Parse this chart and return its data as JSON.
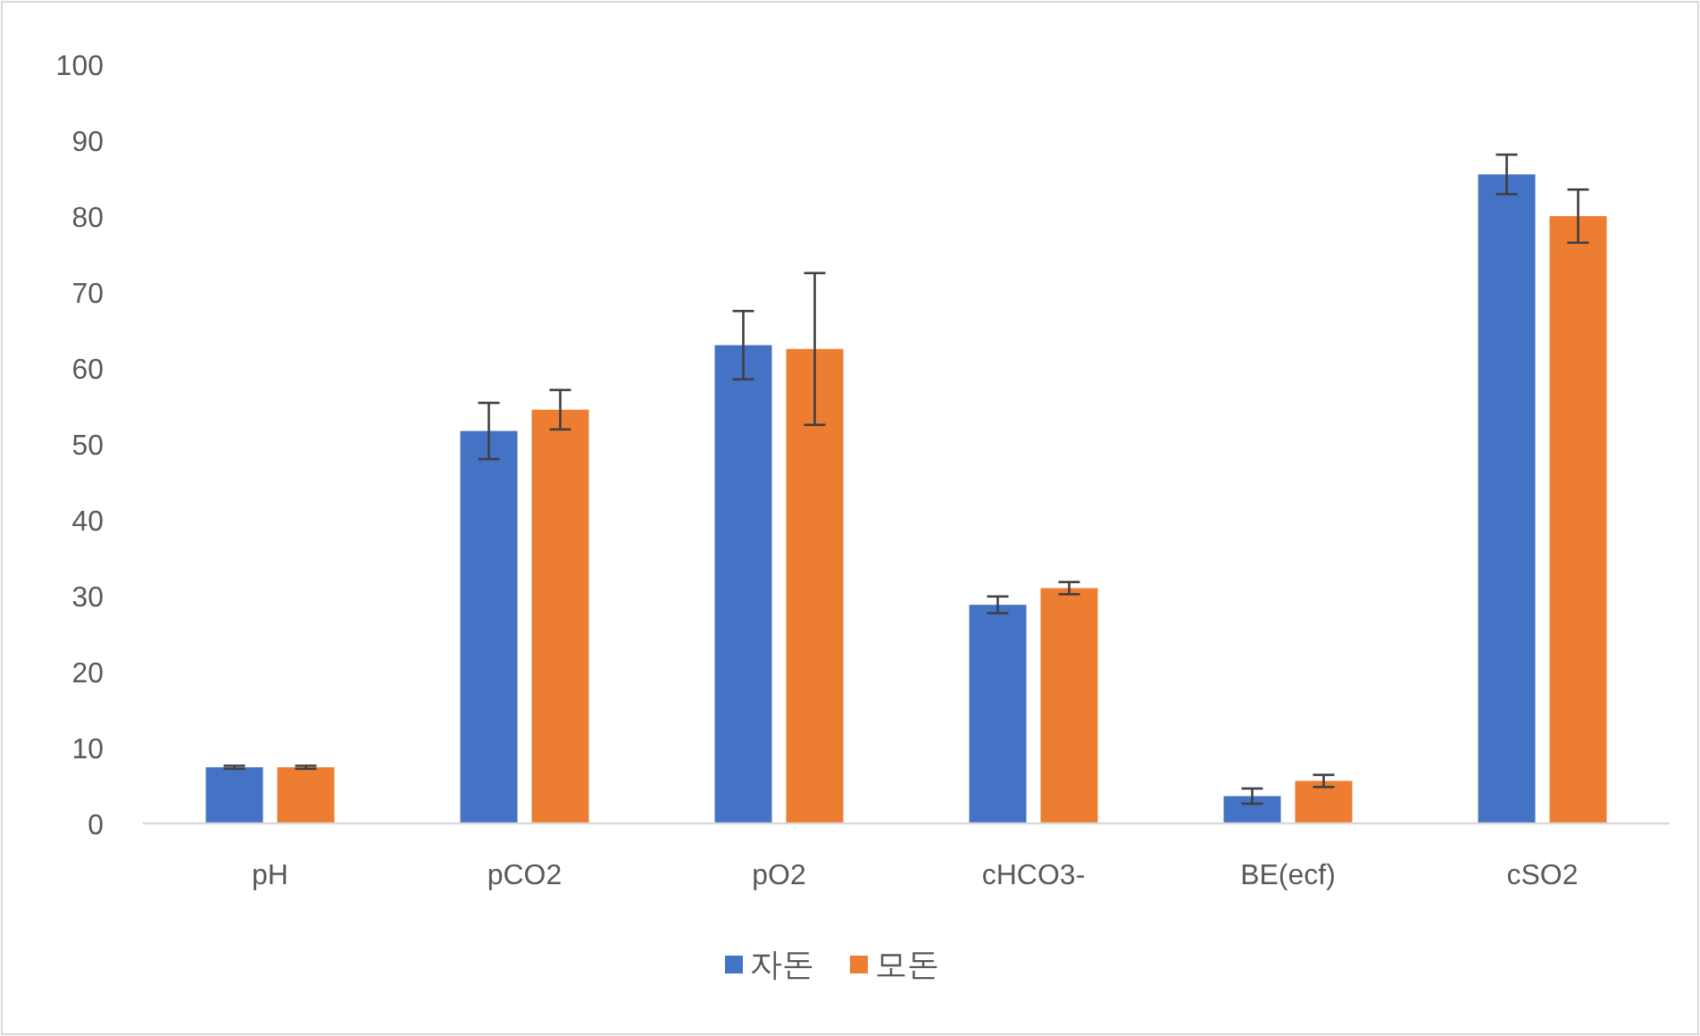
{
  "chart_data": {
    "type": "bar",
    "categories": [
      "pH",
      "pCO2",
      "pO2",
      "cHCO3-",
      "BE(ecf)",
      "cSO2"
    ],
    "series": [
      {
        "name": "자돈",
        "color": "#4472c4",
        "values": [
          7.4,
          51.7,
          63,
          28.8,
          3.6,
          85.5
        ],
        "errors": [
          0.2,
          3.7,
          4.5,
          1.1,
          1,
          2.6
        ]
      },
      {
        "name": "모돈",
        "color": "#ed7d31",
        "values": [
          7.4,
          54.5,
          62.5,
          31,
          5.6,
          80
        ],
        "errors": [
          0.2,
          2.6,
          10,
          0.8,
          0.8,
          3.5
        ]
      }
    ],
    "ylim": [
      0,
      100
    ],
    "yticks": [
      0,
      10,
      20,
      30,
      40,
      50,
      60,
      70,
      80,
      90,
      100
    ],
    "grid": false,
    "legend": "bottom"
  }
}
